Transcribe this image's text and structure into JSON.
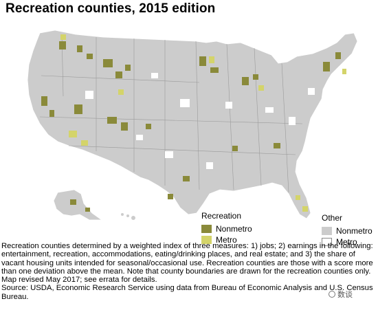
{
  "title": "Recreation counties, 2015 edition",
  "legend": {
    "recreation": {
      "heading": "Recreation",
      "items": [
        {
          "label": "Nonmetro",
          "color": "#8a8a3a"
        },
        {
          "label": "Metro",
          "color": "#d4d46a"
        }
      ]
    },
    "other": {
      "heading": "Other",
      "items": [
        {
          "label": "Nonmetro",
          "color": "#cccccc"
        },
        {
          "label": "Metro",
          "color": "#ffffff"
        }
      ]
    }
  },
  "colors": {
    "border": "#ffffff",
    "state_line": "#9a9a9a"
  },
  "notes": {
    "description": "Recreation counties determined by a weighted index of three measures: 1) jobs; 2) earnings in the following: entertainment, recreation, accommodations, eating/drinking places, and real estate; and 3) the share of vacant housing units intended for seasonal/occasional use. Recreation counties are those with a score more than one deviation above the mean. Note that county boundaries are drawn for the recreation counties only. Map revised May 2017; see errata for details.",
    "source": "Source: USDA, Economic Research Service using data from Bureau of Economic Analysis and U.S. Census Bureau."
  },
  "watermark": "数谈"
}
